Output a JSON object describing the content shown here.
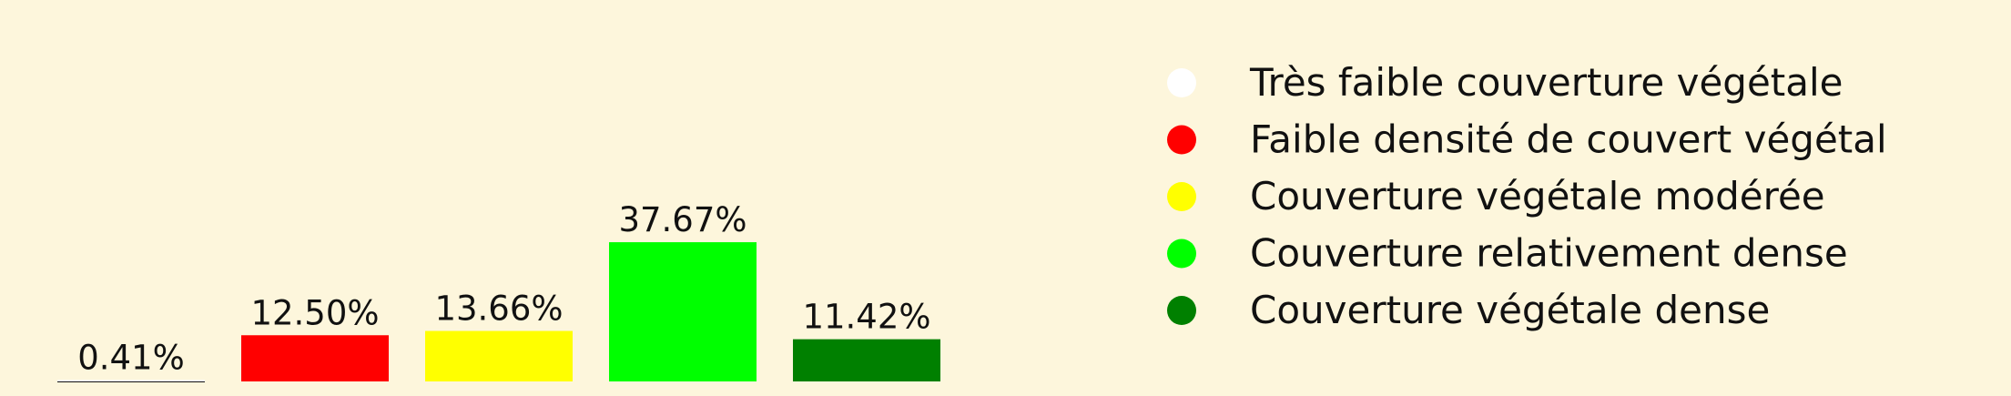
{
  "chart_data": {
    "type": "bar",
    "title": "",
    "xlabel": "",
    "ylabel": "",
    "ylim": [
      0,
      40
    ],
    "grid": false,
    "legend_position": "right",
    "categories": [
      "Très faible couverture végétale",
      "Faible densité de couvert végétal",
      "Couverture végétale modérée",
      "Couverture relativement dense",
      "Couverture végétale dense"
    ],
    "values": [
      0.41,
      12.5,
      13.66,
      37.67,
      11.42
    ],
    "value_labels": [
      "0.41%",
      "12.50%",
      "13.66%",
      "37.67%",
      "11.42%"
    ],
    "colors": [
      "#ffffff",
      "#ff0000",
      "#ffff00",
      "#00ff00",
      "#008000"
    ],
    "background": "#fdf6dc"
  }
}
